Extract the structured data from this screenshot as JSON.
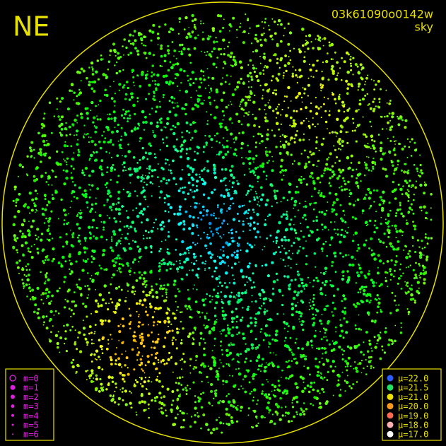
{
  "header": {
    "corner_label": "NE",
    "image_id": "03k61090o0142w",
    "image_type": "sky"
  },
  "magnitude_legend": {
    "color": "#e020e0",
    "items": [
      "m=0",
      "m=1",
      "m=2",
      "m=3",
      "m=4",
      "m=5",
      "m=6"
    ]
  },
  "brightness_legend": {
    "items": [
      {
        "label": "μ=22.0",
        "color": "#2a5cff"
      },
      {
        "label": "μ=21.5",
        "color": "#22e060"
      },
      {
        "label": "μ=21.0",
        "color": "#f0e000"
      },
      {
        "label": "μ=20.0",
        "color": "#ff9a20"
      },
      {
        "label": "μ=19.0",
        "color": "#ff6a50"
      },
      {
        "label": "μ=18.0",
        "color": "#ffb0b0"
      },
      {
        "label": "μ=17.0",
        "color": "#ffffff"
      }
    ]
  }
}
